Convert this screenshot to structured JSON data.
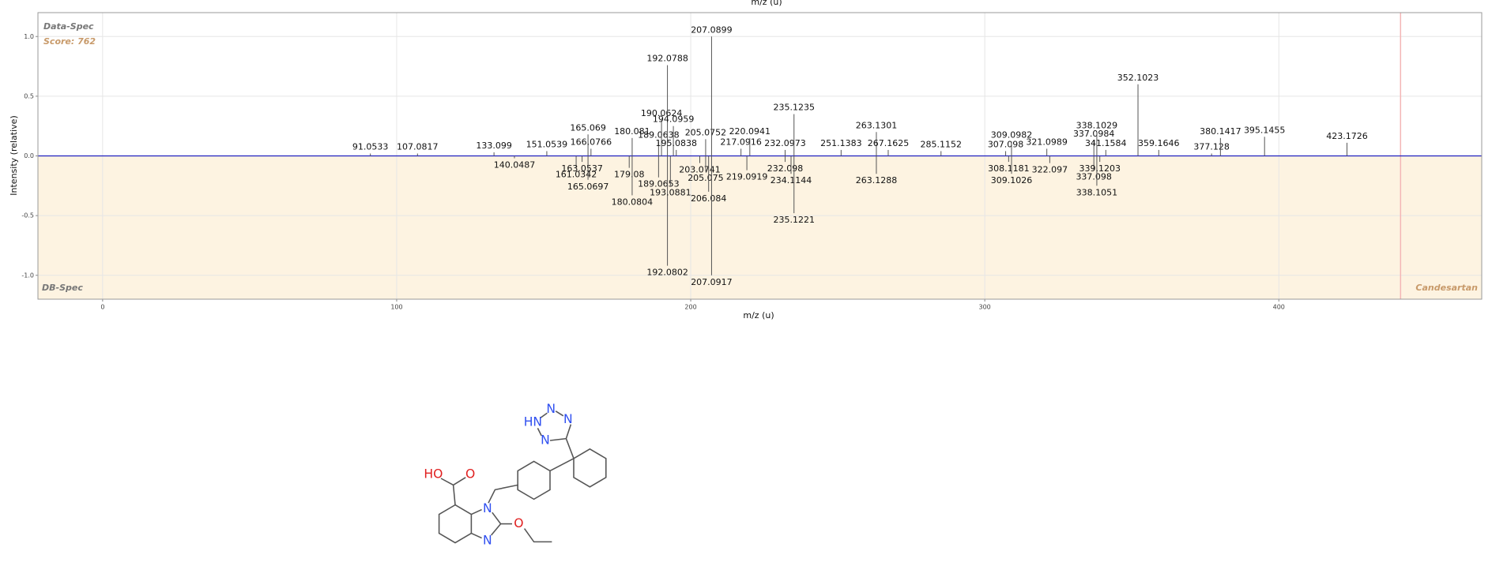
{
  "chart_data": {
    "type": "mirror",
    "x_label": "m/z (u)",
    "y_label": "Intensity (relative)",
    "top_label": "Data-Spec",
    "score": "Score: 762",
    "bottom_label": "DB-Spec",
    "compound": "Candesartan",
    "xlim": [
      -22,
      469
    ],
    "xticks": [
      0,
      100,
      200,
      300,
      400
    ],
    "ylim": [
      -1.2,
      1.2
    ],
    "yticks": [
      {
        "value": -1,
        "label": "-1.0"
      },
      -0.5,
      {
        "value": 0,
        "label": "0.0"
      },
      0.5,
      {
        "value": 1,
        "label": "1.0"
      }
    ],
    "grid": true,
    "marker_x": 441.4,
    "marker_color": "#f4b6b6",
    "series": [
      {
        "name": "Data-Spec",
        "color": "#555555",
        "x": [
          91.0533,
          107.0817,
          133.099,
          151.0539,
          165.069,
          166.0766,
          180.081,
          189.0638,
          190.0624,
          192.0788,
          194.0959,
          195.0838,
          205.0752,
          207.0899,
          217.0916,
          220.0941,
          232.0973,
          235.1235,
          251.1383,
          263.1301,
          267.1625,
          285.1152,
          307.098,
          309.0982,
          321.0989,
          337.0984,
          338.1029,
          341.1584,
          352.1023,
          359.1646,
          377.128,
          380.1417,
          395.1455,
          423.1726
        ],
        "values": [
          0.02,
          0.02,
          0.03,
          0.04,
          0.18,
          0.06,
          0.15,
          0.12,
          0.3,
          0.76,
          0.25,
          0.05,
          0.14,
          1.0,
          0.06,
          0.15,
          0.05,
          0.35,
          0.05,
          0.2,
          0.05,
          0.04,
          0.04,
          0.12,
          0.06,
          0.13,
          0.2,
          0.05,
          0.6,
          0.05,
          0.02,
          0.15,
          0.16,
          0.11
        ]
      },
      {
        "name": "DB-Spec",
        "color": "#555555",
        "x": [
          140.0487,
          161.0342,
          163.0537,
          165.0697,
          179.08,
          180.0804,
          189.0653,
          192.0802,
          193.0881,
          203.0741,
          205.075,
          206.084,
          207.0917,
          219.0919,
          232.098,
          234.1144,
          235.1221,
          263.1288,
          308.1181,
          309.1026,
          322.097,
          337.098,
          338.1051,
          339.1203
        ],
        "values": [
          -0.02,
          -0.1,
          -0.05,
          -0.2,
          -0.1,
          -0.33,
          -0.18,
          -0.92,
          -0.25,
          -0.06,
          -0.13,
          -0.3,
          -1.0,
          -0.12,
          -0.05,
          -0.15,
          -0.48,
          -0.15,
          -0.05,
          -0.15,
          -0.06,
          -0.12,
          -0.25,
          -0.05
        ]
      }
    ]
  },
  "molecule": {
    "atoms": [
      "HO",
      "O",
      "N",
      "N",
      "O",
      "HN",
      "N",
      "N",
      "N"
    ]
  }
}
